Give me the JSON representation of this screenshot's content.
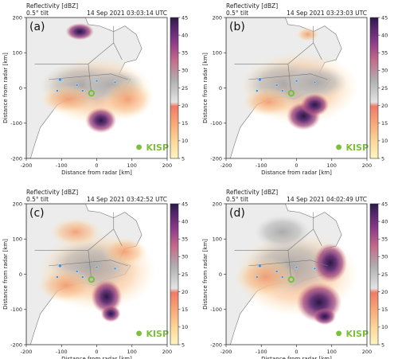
{
  "colorbar": {
    "ticks": [
      5,
      10,
      15,
      20,
      25,
      30,
      35,
      40,
      45
    ]
  },
  "site": {
    "label": "KISP",
    "color": "#7cbf3a"
  },
  "colors": {
    "land": "#ececec",
    "border": "#777777",
    "ring": "#6ec43c",
    "city": "#4a90d9"
  },
  "chart_data": [
    {
      "type": "heatmap",
      "panel": "(a)",
      "title": "Reflectivity [dBZ]",
      "subtitle": "0.5° tilt",
      "time": "14 Sep 2021 03:03:14 UTC",
      "xlabel": "Distance from radar [km]",
      "ylabel": "Distance from radar [km]",
      "xlim": [
        -200,
        200
      ],
      "ylim": [
        -200,
        200
      ],
      "xticks": [
        -200,
        -100,
        0,
        100,
        200
      ],
      "yticks": [
        -200,
        -100,
        0,
        100,
        200
      ],
      "colorbar_range": [
        5,
        45
      ]
    },
    {
      "type": "heatmap",
      "panel": "(b)",
      "title": "Reflectivity [dBZ]",
      "subtitle": "0.5° tilt",
      "time": "14 Sep 2021 03:23:03 UTC",
      "xlabel": "Distance from radar [km]",
      "ylabel": "Distance from radar [km]",
      "xlim": [
        -200,
        200
      ],
      "ylim": [
        -200,
        200
      ],
      "xticks": [
        -200,
        -100,
        0,
        100,
        200
      ],
      "yticks": [
        -200,
        -100,
        0,
        100,
        200
      ],
      "colorbar_range": [
        5,
        45
      ]
    },
    {
      "type": "heatmap",
      "panel": "(c)",
      "title": "Reflectivity [dBZ]",
      "subtitle": "0.5° tilt",
      "time": "14 Sep 2021 03:42:52 UTC",
      "xlabel": "Distance from radar [km]",
      "ylabel": "Distance from radar [km]",
      "xlim": [
        -200,
        200
      ],
      "ylim": [
        -200,
        200
      ],
      "xticks": [
        -200,
        -100,
        0,
        100,
        200
      ],
      "yticks": [
        -200,
        -100,
        0,
        100,
        200
      ],
      "colorbar_range": [
        5,
        45
      ]
    },
    {
      "type": "heatmap",
      "panel": "(d)",
      "title": "Reflectivity [dBZ]",
      "subtitle": "0.5° tilt",
      "time": "14 Sep 2021 04:02:49 UTC",
      "xlabel": "Distance from radar [km]",
      "ylabel": "Distance from radar [km]",
      "xlim": [
        -200,
        200
      ],
      "ylim": [
        -200,
        200
      ],
      "xticks": [
        -200,
        -100,
        0,
        100,
        200
      ],
      "yticks": [
        -200,
        -100,
        0,
        100,
        200
      ],
      "colorbar_range": [
        5,
        45
      ]
    }
  ]
}
